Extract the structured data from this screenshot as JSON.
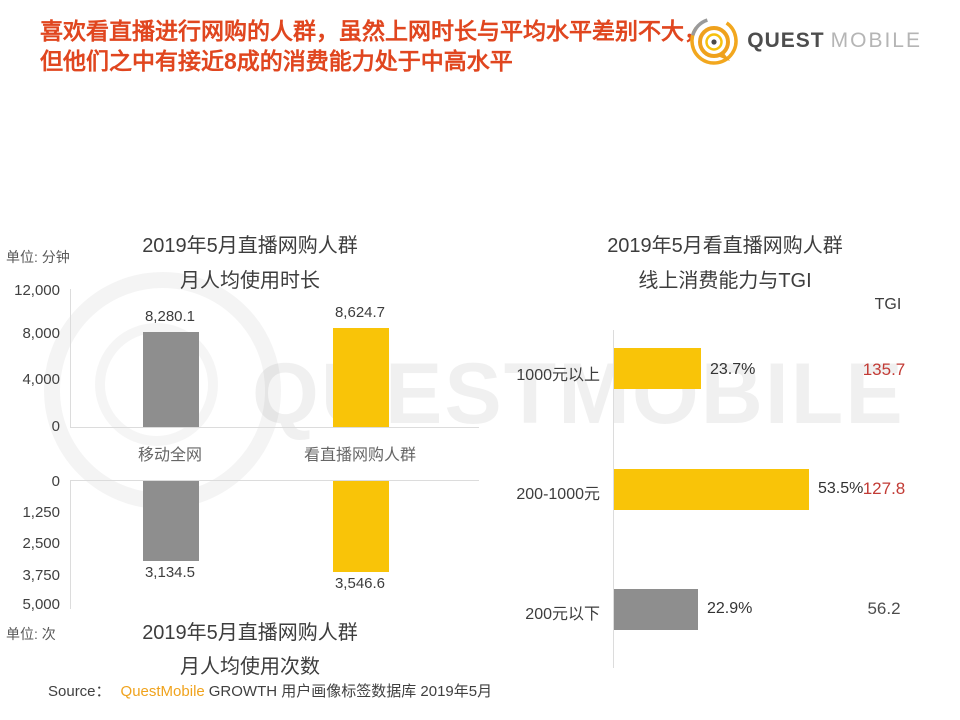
{
  "header": {
    "title_line1": "喜欢看直播进行网购的人群，虽然上网时长与平均水平差别不大，",
    "title_line2": "但他们之中有接近8成的消费能力处于中高水平",
    "title_color": "#e0461f"
  },
  "logo": {
    "quest": "QUEST",
    "mobile": "MOBILE"
  },
  "watermark": {
    "text": "QUESTMOBILE"
  },
  "chart_data": [
    {
      "type": "bar",
      "title_lines": [
        "2019年5月直播网购人群",
        "月人均使用时长"
      ],
      "unit_label": "单位: 分钟",
      "categories": [
        "移动全网",
        "看直播网购人群"
      ],
      "values": [
        8280.1,
        8624.7
      ],
      "value_labels": [
        "8,280.1",
        "8,624.7"
      ],
      "bar_colors": [
        "#8e8e8e",
        "#f9c408"
      ],
      "yticks": [
        "12,000",
        "8,000",
        "4,000",
        "0"
      ],
      "ylim": [
        0,
        12000
      ],
      "grid": false
    },
    {
      "type": "bar",
      "orientation": "inverted",
      "title_lines": [
        "2019年5月直播网购人群",
        "月人均使用次数"
      ],
      "unit_label": "单位: 次",
      "categories": [
        "移动全网",
        "看直播网购人群"
      ],
      "values": [
        3134.5,
        3546.6
      ],
      "value_labels": [
        "3,134.5",
        "3,546.6"
      ],
      "bar_colors": [
        "#8e8e8e",
        "#f9c408"
      ],
      "yticks": [
        "0",
        "1,250",
        "2,500",
        "3,750",
        "5,000"
      ],
      "ylim": [
        0,
        5000
      ],
      "grid": false
    },
    {
      "type": "bar",
      "orientation": "horizontal",
      "title_lines": [
        "2019年5月看直播网购人群",
        "线上消费能力与TGI"
      ],
      "tgi_header": "TGI",
      "categories": [
        "1000元以上",
        "200-1000元",
        "200元以下"
      ],
      "values": [
        23.7,
        53.5,
        22.9
      ],
      "value_labels": [
        "23.7%",
        "53.5%",
        "22.9%"
      ],
      "tgi_values": [
        "135.7",
        "127.8",
        "56.2"
      ],
      "tgi_colors": [
        "#c23b35",
        "#c23b35",
        "#4d4d4d"
      ],
      "bar_colors": [
        "#f9c408",
        "#f9c408",
        "#8e8e8e"
      ],
      "xlim": [
        0,
        60
      ]
    }
  ],
  "source": {
    "label": "Source：",
    "brand": "QuestMobile",
    "text": "GROWTH 用户画像标签数据库 2019年5月"
  }
}
